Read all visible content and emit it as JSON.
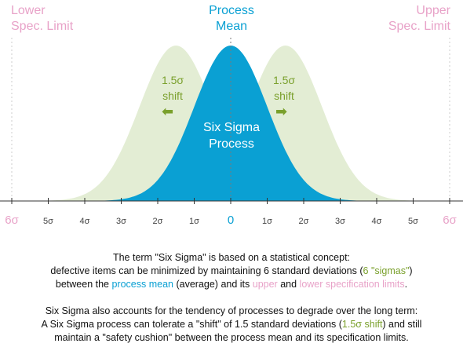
{
  "colors": {
    "process": "#0aa0d3",
    "shifted": "#e3edd4",
    "shift_text": "#7aa02c",
    "spec_limit": "#e8a2c8",
    "axis": "#333333"
  },
  "labels": {
    "lower_spec": [
      "Lower",
      "Spec. Limit"
    ],
    "upper_spec": [
      "Upper",
      "Spec. Limit"
    ],
    "process_mean": [
      "Process",
      "Mean"
    ],
    "shift_left": [
      "1.5σ",
      "shift"
    ],
    "shift_right": [
      "1.5σ",
      "shift"
    ],
    "process": [
      "Six Sigma",
      "Process"
    ],
    "arrow_left_icon": "arrow-left-icon",
    "arrow_right_icon": "arrow-right-icon"
  },
  "axis": {
    "ticks": [
      {
        "value": -6,
        "label": "6σ"
      },
      {
        "value": -5,
        "label": "5σ"
      },
      {
        "value": -4,
        "label": "4σ"
      },
      {
        "value": -3,
        "label": "3σ"
      },
      {
        "value": -2,
        "label": "2σ"
      },
      {
        "value": -1,
        "label": "1σ"
      },
      {
        "value": 0,
        "label": "0"
      },
      {
        "value": 1,
        "label": "1σ"
      },
      {
        "value": 2,
        "label": "2σ"
      },
      {
        "value": 3,
        "label": "3σ"
      },
      {
        "value": 4,
        "label": "4σ"
      },
      {
        "value": 5,
        "label": "5σ"
      },
      {
        "value": 6,
        "label": "6σ"
      }
    ]
  },
  "curves": {
    "process_mean_sigma": 0,
    "shift_sigma": 1.5
  },
  "caption": {
    "p1_l1": "The term \"Six Sigma\" is based on a statistical concept:",
    "p1_l2_a": "defective items can be minimized by maintaining 6 standard deviations (",
    "p1_l2_b": "6 \"sigmas\"",
    "p1_l2_c": ")",
    "p1_l3_a": "between the ",
    "p1_l3_b": "process mean",
    "p1_l3_c": " (average) and its ",
    "p1_l3_d": "upper",
    "p1_l3_e": " and ",
    "p1_l3_f": "lower specification limits",
    "p1_l3_g": ".",
    "p2_l1": "Six Sigma also accounts for the tendency of processes to degrade over the long term:",
    "p2_l2_a": "A Six Sigma process can tolerate a \"shift\" of 1.5 standard deviations (",
    "p2_l2_b": "1.5σ shift",
    "p2_l2_c": ") and still",
    "p2_l3": "maintain a \"safety cushion\" between the process mean and its specification limits."
  }
}
